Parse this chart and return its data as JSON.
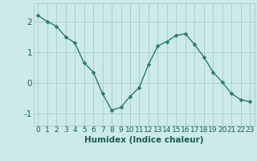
{
  "x": [
    0,
    1,
    2,
    3,
    4,
    5,
    6,
    7,
    8,
    9,
    10,
    11,
    12,
    13,
    14,
    15,
    16,
    17,
    18,
    19,
    20,
    21,
    22,
    23
  ],
  "y": [
    2.2,
    2.0,
    1.85,
    1.5,
    1.3,
    0.65,
    0.35,
    -0.35,
    -0.9,
    -0.8,
    -0.45,
    -0.15,
    0.6,
    1.2,
    1.35,
    1.55,
    1.6,
    1.25,
    0.85,
    0.35,
    0.02,
    -0.35,
    -0.55,
    -0.62
  ],
  "line_color": "#2d7a6e",
  "marker": "D",
  "marker_size": 2.5,
  "line_width": 1.0,
  "bg_color": "#cceaea",
  "grid_color": "#aacfcf",
  "xlabel": "Humidex (Indice chaleur)",
  "xlabel_fontsize": 7.5,
  "xlabel_color": "#1a5c54",
  "tick_label_color": "#1a5c54",
  "tick_fontsize": 6.5,
  "ytick_fontsize": 7.5,
  "ylim": [
    -1.4,
    2.6
  ],
  "yticks": [
    -1,
    0,
    1,
    2
  ],
  "xticks": [
    0,
    1,
    2,
    3,
    4,
    5,
    6,
    7,
    8,
    9,
    10,
    11,
    12,
    13,
    14,
    15,
    16,
    17,
    18,
    19,
    20,
    21,
    22,
    23
  ]
}
